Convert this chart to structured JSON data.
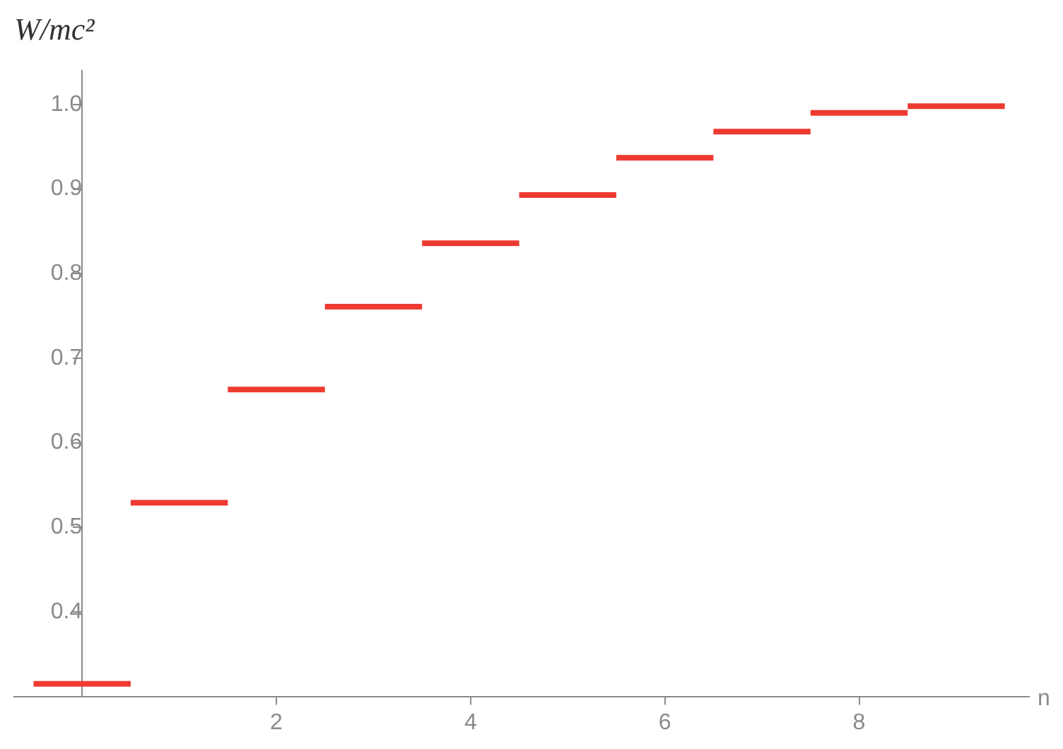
{
  "chart_data": {
    "type": "line",
    "xlabel": "n",
    "ylabel": "W/mc²",
    "series": [
      {
        "color": "#ee3a30",
        "x": [
          -0.5,
          0.5
        ],
        "values": [
          0.315,
          0.315
        ]
      },
      {
        "color": "#ee3a30",
        "x": [
          0.5,
          1.5
        ],
        "values": [
          0.529,
          0.529
        ]
      },
      {
        "color": "#ee3a30",
        "x": [
          1.5,
          2.5
        ],
        "values": [
          0.663,
          0.663
        ]
      },
      {
        "color": "#ee3a30",
        "x": [
          2.5,
          3.5
        ],
        "values": [
          0.761,
          0.761
        ]
      },
      {
        "color": "#ee3a30",
        "x": [
          3.5,
          4.5
        ],
        "values": [
          0.836,
          0.836
        ]
      },
      {
        "color": "#ee3a30",
        "x": [
          4.5,
          5.5
        ],
        "values": [
          0.893,
          0.893
        ]
      },
      {
        "color": "#ee3a30",
        "x": [
          5.5,
          6.5
        ],
        "values": [
          0.937,
          0.937
        ]
      },
      {
        "color": "#ee3a30",
        "x": [
          6.5,
          7.5
        ],
        "values": [
          0.968,
          0.968
        ]
      },
      {
        "color": "#ee3a30",
        "x": [
          7.5,
          8.5
        ],
        "values": [
          0.99,
          0.99
        ]
      },
      {
        "color": "#ee3a30",
        "x": [
          8.5,
          9.5
        ],
        "values": [
          0.998,
          0.998
        ]
      }
    ],
    "xlim": [
      -0.7,
      9.75
    ],
    "xticks": [
      2,
      4,
      6,
      8
    ],
    "ylim": [
      0.3,
      1.04
    ],
    "yticks": [
      0.4,
      0.5,
      0.6,
      0.7,
      0.8,
      0.9,
      {
        "value": 1,
        "label": "1.0"
      }
    ],
    "grid": false,
    "legend": false,
    "marker": "none"
  }
}
